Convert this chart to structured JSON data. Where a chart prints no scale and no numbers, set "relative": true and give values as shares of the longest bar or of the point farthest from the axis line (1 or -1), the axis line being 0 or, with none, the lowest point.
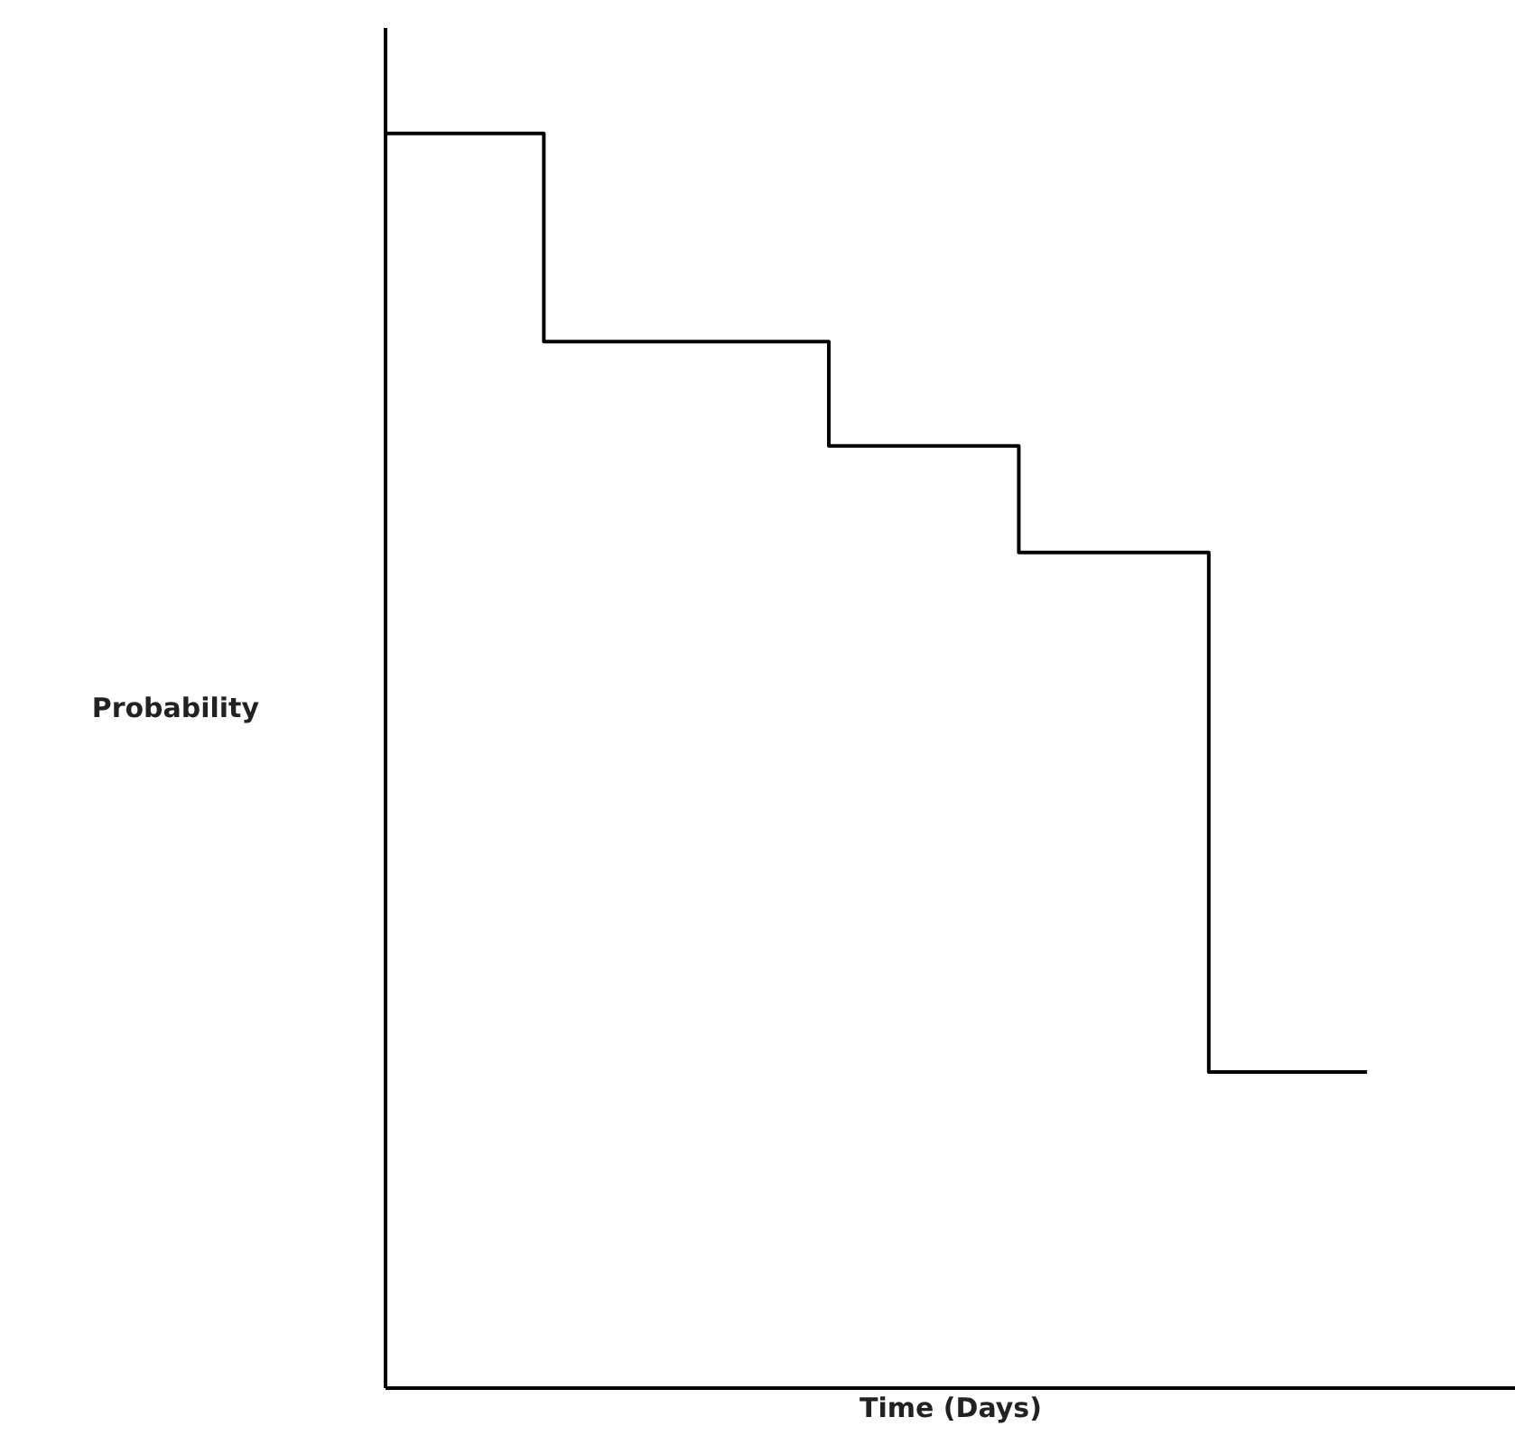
{
  "chart_data": {
    "type": "step",
    "relative": true,
    "xlabel": "Time (Days)",
    "ylabel": "Probability",
    "color": "#000000",
    "categories": [
      null,
      null,
      null,
      null,
      null,
      null,
      null,
      null,
      null,
      null,
      null,
      null,
      null,
      null,
      null,
      null,
      null,
      null,
      null,
      null,
      null,
      null,
      null,
      null,
      null,
      null,
      null,
      null,
      null,
      null,
      null,
      null
    ],
    "values": [
      1,
      1,
      1,
      1,
      1,
      0.834,
      0.834,
      0.834,
      0.834,
      0.834,
      0.834,
      0.834,
      0.834,
      0.834,
      0.751,
      0.751,
      0.751,
      0.751,
      0.751,
      0.751,
      0.666,
      0.666,
      0.666,
      0.666,
      0.666,
      0.666,
      0.252,
      0.252,
      0.252,
      0.252,
      0.252,
      0.252
    ]
  }
}
